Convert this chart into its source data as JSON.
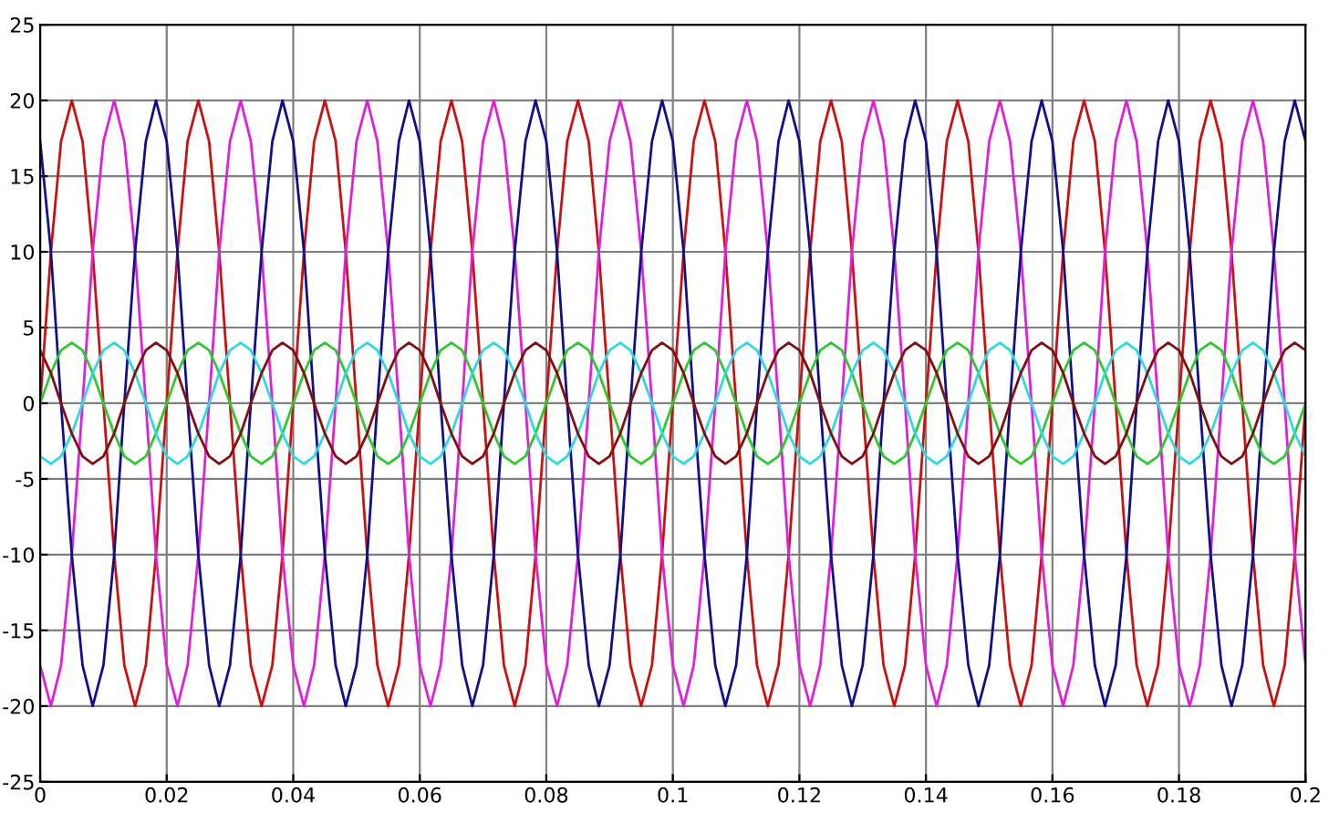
{
  "chart_data": {
    "type": "line",
    "x": [
      0,
      0.0017,
      0.0033,
      0.005,
      0.0067,
      0.0083,
      0.01,
      0.0117,
      0.0133,
      0.015,
      0.0167,
      0.0183,
      0.02,
      0.0217,
      0.0233,
      0.025,
      0.0267,
      0.0283,
      0.03,
      0.0317,
      0.0333,
      0.035,
      0.0367,
      0.0383,
      0.04,
      0.0417,
      0.0433,
      0.045,
      0.0467,
      0.0483,
      0.05,
      0.0517,
      0.0533,
      0.055,
      0.0567,
      0.0583,
      0.06,
      0.0617,
      0.0633,
      0.065,
      0.0667,
      0.0683,
      0.07,
      0.0717,
      0.0733,
      0.075,
      0.0767,
      0.0783,
      0.08,
      0.0817,
      0.0833,
      0.085,
      0.0867,
      0.0883,
      0.09,
      0.0917,
      0.0933,
      0.095,
      0.0967,
      0.0983,
      0.1,
      0.1017,
      0.1033,
      0.105,
      0.1067,
      0.1083,
      0.11,
      0.1117,
      0.1133,
      0.115,
      0.1167,
      0.1183,
      0.12,
      0.1217,
      0.1233,
      0.125,
      0.1267,
      0.1283,
      0.13,
      0.1317,
      0.1333,
      0.135,
      0.1367,
      0.1383,
      0.14,
      0.1417,
      0.1433,
      0.145,
      0.1467,
      0.1483,
      0.15,
      0.1517,
      0.1533,
      0.155,
      0.1567,
      0.1583,
      0.16,
      0.1617,
      0.1633,
      0.165,
      0.1667,
      0.1683,
      0.17,
      0.1717,
      0.1733,
      0.175,
      0.1767,
      0.1783,
      0.18,
      0.1817,
      0.1833,
      0.185,
      0.1867,
      0.1883,
      0.19,
      0.1917,
      0.1933,
      0.195,
      0.1967,
      0.1983,
      0.2
    ],
    "series": [
      {
        "color": "#cc1010",
        "values": [
          0,
          10,
          17.3,
          20,
          17.3,
          10,
          0,
          -10,
          -17.3,
          -20,
          -17.3,
          -10,
          0,
          10,
          17.3,
          20,
          17.3,
          10,
          0,
          -10,
          -17.3,
          -20,
          -17.3,
          -10,
          0,
          10,
          17.3,
          20,
          17.3,
          10,
          0,
          -10,
          -17.3,
          -20,
          -17.3,
          -10,
          0,
          10,
          17.3,
          20,
          17.3,
          10,
          0,
          -10,
          -17.3,
          -20,
          -17.3,
          -10,
          0,
          10,
          17.3,
          20,
          17.3,
          10,
          0,
          -10,
          -17.3,
          -20,
          -17.3,
          -10,
          0,
          10,
          17.3,
          20,
          17.3,
          10,
          0,
          -10,
          -17.3,
          -20,
          -17.3,
          -10,
          0,
          10,
          17.3,
          20,
          17.3,
          10,
          0,
          -10,
          -17.3,
          -20,
          -17.3,
          -10,
          0,
          10,
          17.3,
          20,
          17.3,
          10,
          0,
          -10,
          -17.3,
          -20,
          -17.3,
          -10,
          0,
          10,
          17.3,
          20,
          17.3,
          10,
          0,
          -10,
          -17.3,
          -20,
          -17.3,
          -10,
          0,
          10,
          17.3,
          20,
          17.3,
          10,
          0,
          -10,
          -17.3,
          -20,
          -17.3,
          -10,
          0
        ]
      },
      {
        "color": "#e020d8",
        "values": [
          -17.3,
          -20,
          -17.3,
          -10,
          0,
          10,
          17.3,
          20,
          17.3,
          10,
          0,
          -10,
          -17.3,
          -20,
          -17.3,
          -10,
          0,
          10,
          17.3,
          20,
          17.3,
          10,
          0,
          -10,
          -17.3,
          -20,
          -17.3,
          -10,
          0,
          10,
          17.3,
          20,
          17.3,
          10,
          0,
          -10,
          -17.3,
          -20,
          -17.3,
          -10,
          0,
          10,
          17.3,
          20,
          17.3,
          10,
          0,
          -10,
          -17.3,
          -20,
          -17.3,
          -10,
          0,
          10,
          17.3,
          20,
          17.3,
          10,
          0,
          -10,
          -17.3,
          -20,
          -17.3,
          -10,
          0,
          10,
          17.3,
          20,
          17.3,
          10,
          0,
          -10,
          -17.3,
          -20,
          -17.3,
          -10,
          0,
          10,
          17.3,
          20,
          17.3,
          10,
          0,
          -10,
          -17.3,
          -20,
          -17.3,
          -10,
          0,
          10,
          17.3,
          20,
          17.3,
          10,
          0,
          -10,
          -17.3,
          -20,
          -17.3,
          -10,
          0,
          10,
          17.3,
          20,
          17.3,
          10,
          0,
          -10,
          -17.3,
          -20,
          -17.3,
          -10,
          0,
          10,
          17.3,
          20,
          17.3,
          10,
          0,
          -10,
          -17.3
        ]
      },
      {
        "color": "#10108a",
        "values": [
          17.3,
          10,
          0,
          -10,
          -17.3,
          -20,
          -17.3,
          -10,
          0,
          10,
          17.3,
          20,
          17.3,
          10,
          0,
          -10,
          -17.3,
          -20,
          -17.3,
          -10,
          0,
          10,
          17.3,
          20,
          17.3,
          10,
          0,
          -10,
          -17.3,
          -20,
          -17.3,
          -10,
          0,
          10,
          17.3,
          20,
          17.3,
          10,
          0,
          -10,
          -17.3,
          -20,
          -17.3,
          -10,
          0,
          10,
          17.3,
          20,
          17.3,
          10,
          0,
          -10,
          -17.3,
          -20,
          -17.3,
          -10,
          0,
          10,
          17.3,
          20,
          17.3,
          10,
          0,
          -10,
          -17.3,
          -20,
          -17.3,
          -10,
          0,
          10,
          17.3,
          20,
          17.3,
          10,
          0,
          -10,
          -17.3,
          -20,
          -17.3,
          -10,
          0,
          10,
          17.3,
          20,
          17.3,
          10,
          0,
          -10,
          -17.3,
          -20,
          -17.3,
          -10,
          0,
          10,
          17.3,
          20,
          17.3,
          10,
          0,
          -10,
          -17.3,
          -20,
          -17.3,
          -10,
          0,
          10,
          17.3,
          20,
          17.3,
          10,
          0,
          -10,
          -17.3,
          -20,
          -17.3,
          -10,
          0,
          10,
          17.3,
          20,
          17.3
        ]
      },
      {
        "color": "#30c830",
        "values": [
          0,
          2,
          3.5,
          4,
          3.5,
          2,
          0,
          -2,
          -3.5,
          -4,
          -3.5,
          -2,
          0,
          2,
          3.5,
          4,
          3.5,
          2,
          0,
          -2,
          -3.5,
          -4,
          -3.5,
          -2,
          0,
          2,
          3.5,
          4,
          3.5,
          2,
          0,
          -2,
          -3.5,
          -4,
          -3.5,
          -2,
          0,
          2,
          3.5,
          4,
          3.5,
          2,
          0,
          -2,
          -3.5,
          -4,
          -3.5,
          -2,
          0,
          2,
          3.5,
          4,
          3.5,
          2,
          0,
          -2,
          -3.5,
          -4,
          -3.5,
          -2,
          0,
          2,
          3.5,
          4,
          3.5,
          2,
          0,
          -2,
          -3.5,
          -4,
          -3.5,
          -2,
          0,
          2,
          3.5,
          4,
          3.5,
          2,
          0,
          -2,
          -3.5,
          -4,
          -3.5,
          -2,
          0,
          2,
          3.5,
          4,
          3.5,
          2,
          0,
          -2,
          -3.5,
          -4,
          -3.5,
          -2,
          0,
          2,
          3.5,
          4,
          3.5,
          2,
          0,
          -2,
          -3.5,
          -4,
          -3.5,
          -2,
          0,
          2,
          3.5,
          4,
          3.5,
          2,
          0,
          -2,
          -3.5,
          -4,
          -3.5,
          -2,
          0
        ]
      },
      {
        "color": "#30d8e0",
        "values": [
          -3.5,
          -4,
          -3.5,
          -2,
          0,
          2,
          3.5,
          4,
          3.5,
          2,
          0,
          -2,
          -3.5,
          -4,
          -3.5,
          -2,
          0,
          2,
          3.5,
          4,
          3.5,
          2,
          0,
          -2,
          -3.5,
          -4,
          -3.5,
          -2,
          0,
          2,
          3.5,
          4,
          3.5,
          2,
          0,
          -2,
          -3.5,
          -4,
          -3.5,
          -2,
          0,
          2,
          3.5,
          4,
          3.5,
          2,
          0,
          -2,
          -3.5,
          -4,
          -3.5,
          -2,
          0,
          2,
          3.5,
          4,
          3.5,
          2,
          0,
          -2,
          -3.5,
          -4,
          -3.5,
          -2,
          0,
          2,
          3.5,
          4,
          3.5,
          2,
          0,
          -2,
          -3.5,
          -4,
          -3.5,
          -2,
          0,
          2,
          3.5,
          4,
          3.5,
          2,
          0,
          -2,
          -3.5,
          -4,
          -3.5,
          -2,
          0,
          2,
          3.5,
          4,
          3.5,
          2,
          0,
          -2,
          -3.5,
          -4,
          -3.5,
          -2,
          0,
          2,
          3.5,
          4,
          3.5,
          2,
          0,
          -2,
          -3.5,
          -4,
          -3.5,
          -2,
          0,
          2,
          3.5,
          4,
          3.5,
          2,
          0,
          -2,
          -3.5
        ]
      },
      {
        "color": "#801010",
        "values": [
          3.5,
          2,
          0,
          -2,
          -3.5,
          -4,
          -3.5,
          -2,
          0,
          2,
          3.5,
          4,
          3.5,
          2,
          0,
          -2,
          -3.5,
          -4,
          -3.5,
          -2,
          0,
          2,
          3.5,
          4,
          3.5,
          2,
          0,
          -2,
          -3.5,
          -4,
          -3.5,
          -2,
          0,
          2,
          3.5,
          4,
          3.5,
          2,
          0,
          -2,
          -3.5,
          -4,
          -3.5,
          -2,
          0,
          2,
          3.5,
          4,
          3.5,
          2,
          0,
          -2,
          -3.5,
          -4,
          -3.5,
          -2,
          0,
          2,
          3.5,
          4,
          3.5,
          2,
          0,
          -2,
          -3.5,
          -4,
          -3.5,
          -2,
          0,
          2,
          3.5,
          4,
          3.5,
          2,
          0,
          -2,
          -3.5,
          -4,
          -3.5,
          -2,
          0,
          2,
          3.5,
          4,
          3.5,
          2,
          0,
          -2,
          -3.5,
          -4,
          -3.5,
          -2,
          0,
          2,
          3.5,
          4,
          3.5,
          2,
          0,
          -2,
          -3.5,
          -4,
          -3.5,
          -2,
          0,
          2,
          3.5,
          4,
          3.5,
          2,
          0,
          -2,
          -3.5,
          -4,
          -3.5,
          -2,
          0,
          2,
          3.5,
          4,
          3.5
        ]
      }
    ],
    "xlim": [
      0,
      0.2
    ],
    "xticks": [
      0,
      0.02,
      0.04,
      0.06,
      0.08,
      0.1,
      0.12,
      0.14,
      0.16,
      0.18,
      0.2
    ],
    "ylim": [
      -25,
      25
    ],
    "yticks": [
      -25,
      -20,
      -15,
      -10,
      -5,
      0,
      5,
      10,
      15,
      20,
      25
    ],
    "grid": true
  }
}
